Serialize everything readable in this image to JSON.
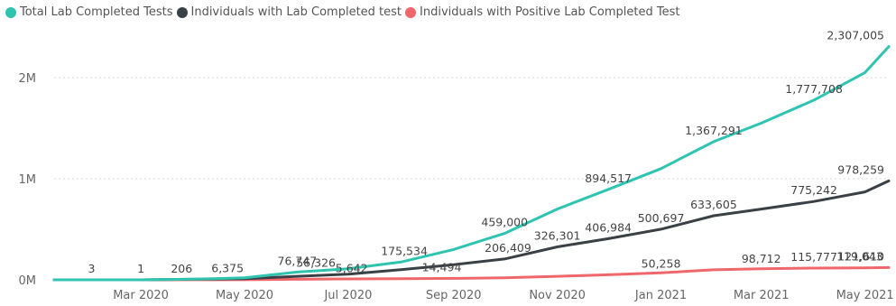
{
  "legend": [
    {
      "label": "Total Lab Completed Tests",
      "color": "#2ec4b0"
    },
    {
      "label": "Individuals with Lab Completed test",
      "color": "#3a4146"
    },
    {
      "label": "Individuals with Positive  Lab Completed Test",
      "color": "#f0676b"
    }
  ],
  "chart_data": {
    "type": "line",
    "title": "",
    "xlabel": "",
    "ylabel": "",
    "ylim": [
      0,
      2500000
    ],
    "xlim": [
      "2020-01-10",
      "2021-05-15"
    ],
    "y_ticks": [
      {
        "value": 0,
        "label": "0M"
      },
      {
        "value": 1000000,
        "label": "1M"
      },
      {
        "value": 2000000,
        "label": "2M"
      }
    ],
    "x_ticks": [
      {
        "date": "2020-03-01",
        "label": "Mar 2020"
      },
      {
        "date": "2020-05-01",
        "label": "May 2020"
      },
      {
        "date": "2020-07-01",
        "label": "Jul 2020"
      },
      {
        "date": "2020-09-01",
        "label": "Sep 2020"
      },
      {
        "date": "2020-11-01",
        "label": "Nov 2020"
      },
      {
        "date": "2021-01-01",
        "label": "Jan 2021"
      },
      {
        "date": "2021-03-01",
        "label": "Mar 2021"
      },
      {
        "date": "2021-05-01",
        "label": "May 2021"
      }
    ],
    "grid": {
      "horizontal": true,
      "vertical": false
    },
    "legend_position": "top-left",
    "series": [
      {
        "name": "Total Lab Completed Tests",
        "color": "#2ec4b0",
        "points": [
          {
            "x": "2020-01-10",
            "y": 0
          },
          {
            "x": "2020-02-01",
            "y": 3
          },
          {
            "x": "2020-03-01",
            "y": 300
          },
          {
            "x": "2020-04-01",
            "y": 6375
          },
          {
            "x": "2020-05-01",
            "y": 20000
          },
          {
            "x": "2020-06-01",
            "y": 76747
          },
          {
            "x": "2020-07-01",
            "y": 110000
          },
          {
            "x": "2020-08-01",
            "y": 175534
          },
          {
            "x": "2020-09-01",
            "y": 300000
          },
          {
            "x": "2020-10-01",
            "y": 459000
          },
          {
            "x": "2020-11-01",
            "y": 700000
          },
          {
            "x": "2020-12-01",
            "y": 894517
          },
          {
            "x": "2021-01-01",
            "y": 1100000
          },
          {
            "x": "2021-02-01",
            "y": 1367291
          },
          {
            "x": "2021-03-01",
            "y": 1550000
          },
          {
            "x": "2021-04-01",
            "y": 1777708
          },
          {
            "x": "2021-05-01",
            "y": 2050000
          },
          {
            "x": "2021-05-15",
            "y": 2307005
          }
        ]
      },
      {
        "name": "Individuals with Lab Completed test",
        "color": "#3a4146",
        "points": [
          {
            "x": "2020-01-10",
            "y": 0
          },
          {
            "x": "2020-03-01",
            "y": 206
          },
          {
            "x": "2020-05-01",
            "y": 12000
          },
          {
            "x": "2020-06-01",
            "y": 35000
          },
          {
            "x": "2020-07-01",
            "y": 56000
          },
          {
            "x": "2020-08-01",
            "y": 100000
          },
          {
            "x": "2020-09-01",
            "y": 150000
          },
          {
            "x": "2020-10-01",
            "y": 206409
          },
          {
            "x": "2020-11-01",
            "y": 326301
          },
          {
            "x": "2020-12-01",
            "y": 406984
          },
          {
            "x": "2021-01-01",
            "y": 500697
          },
          {
            "x": "2021-02-01",
            "y": 633605
          },
          {
            "x": "2021-03-01",
            "y": 700000
          },
          {
            "x": "2021-04-01",
            "y": 775242
          },
          {
            "x": "2021-05-01",
            "y": 870000
          },
          {
            "x": "2021-05-15",
            "y": 978259
          }
        ]
      },
      {
        "name": "Individuals with Positive  Lab Completed Test",
        "color": "#f0676b",
        "points": [
          {
            "x": "2020-01-10",
            "y": 0
          },
          {
            "x": "2020-03-01",
            "y": 1
          },
          {
            "x": "2020-05-01",
            "y": 500
          },
          {
            "x": "2020-06-01",
            "y": 5642
          },
          {
            "x": "2020-07-01",
            "y": 9000
          },
          {
            "x": "2020-08-01",
            "y": 12000
          },
          {
            "x": "2020-09-01",
            "y": 14494
          },
          {
            "x": "2020-10-01",
            "y": 20000
          },
          {
            "x": "2020-11-01",
            "y": 35000
          },
          {
            "x": "2020-12-01",
            "y": 50258
          },
          {
            "x": "2021-01-01",
            "y": 70000
          },
          {
            "x": "2021-02-01",
            "y": 98712
          },
          {
            "x": "2021-03-01",
            "y": 110000
          },
          {
            "x": "2021-04-01",
            "y": 115777
          },
          {
            "x": "2021-05-01",
            "y": 119043
          },
          {
            "x": "2021-05-15",
            "y": 121610
          }
        ]
      }
    ],
    "data_labels": [
      {
        "text": "3",
        "x": "2020-02-01",
        "y": 3
      },
      {
        "text": "1",
        "x": "2020-03-01",
        "y": 1
      },
      {
        "text": "206",
        "x": "2020-03-25",
        "y": 206
      },
      {
        "text": "6,375",
        "x": "2020-04-21",
        "y": 6375
      },
      {
        "text": "76,747",
        "x": "2020-06-01",
        "y": 76747
      },
      {
        "text": "56,326",
        "x": "2020-06-12",
        "y": 56000
      },
      {
        "text": "5,642",
        "x": "2020-07-03",
        "y": 5642
      },
      {
        "text": "175,534",
        "x": "2020-08-03",
        "y": 175534
      },
      {
        "text": "14,494",
        "x": "2020-08-25",
        "y": 14494
      },
      {
        "text": "459,000",
        "x": "2020-10-01",
        "y": 459000
      },
      {
        "text": "206,409",
        "x": "2020-10-03",
        "y": 206409
      },
      {
        "text": "326,301",
        "x": "2020-11-01",
        "y": 326301
      },
      {
        "text": "894,517",
        "x": "2020-12-01",
        "y": 894517
      },
      {
        "text": "406,984",
        "x": "2020-12-01",
        "y": 406984
      },
      {
        "text": "500,697",
        "x": "2021-01-01",
        "y": 500697
      },
      {
        "text": "50,258",
        "x": "2021-01-01",
        "y": 50258
      },
      {
        "text": "1,367,291",
        "x": "2021-02-01",
        "y": 1367291
      },
      {
        "text": "633,605",
        "x": "2021-02-01",
        "y": 633605
      },
      {
        "text": "98,712",
        "x": "2021-03-01",
        "y": 98712
      },
      {
        "text": "1,777,708",
        "x": "2021-04-01",
        "y": 1777708
      },
      {
        "text": "775,242",
        "x": "2021-04-01",
        "y": 775242
      },
      {
        "text": "115,777",
        "x": "2021-04-01",
        "y": 115777
      },
      {
        "text": "119,043",
        "x": "2021-04-28",
        "y": 119043
      },
      {
        "text": "2,307,005",
        "x": "2021-05-15",
        "y": 2307005
      },
      {
        "text": "978,259",
        "x": "2021-05-15",
        "y": 978259
      },
      {
        "text": "121,610",
        "x": "2021-05-15",
        "y": 121610
      }
    ]
  }
}
